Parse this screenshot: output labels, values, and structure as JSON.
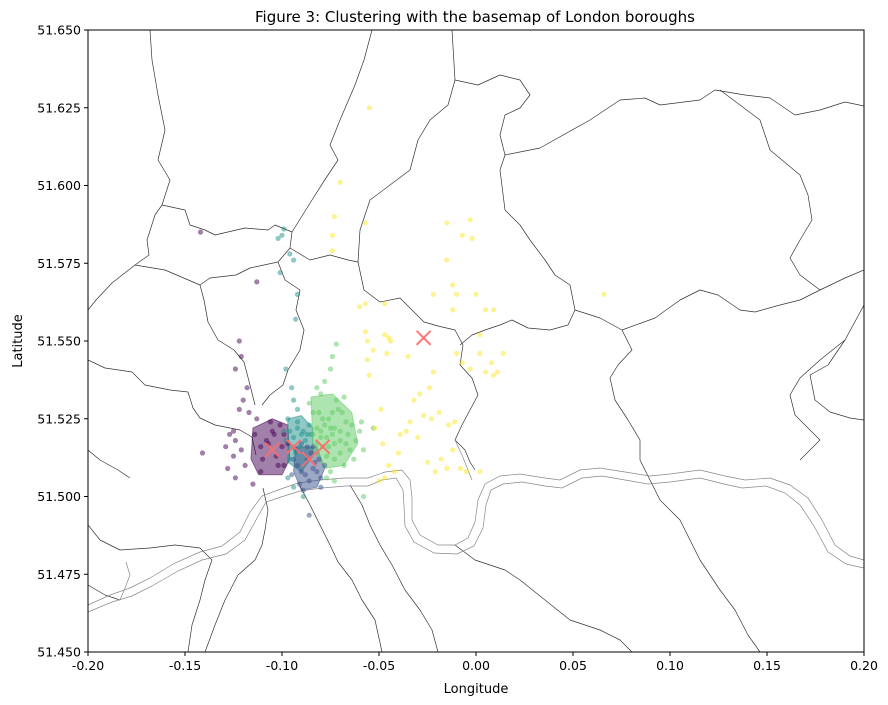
{
  "chart_data": {
    "type": "scatter",
    "title": "Figure 3: Clustering with the basemap of London boroughs",
    "xlabel": "Longitude",
    "ylabel": "Latitude",
    "xlim": [
      -0.2,
      0.2
    ],
    "ylim": [
      51.45,
      51.65
    ],
    "x_ticks": [
      "-0.20",
      "-0.15",
      "-0.10",
      "-0.05",
      "0.00",
      "0.05",
      "0.10",
      "0.15",
      "0.20"
    ],
    "y_ticks": [
      "51.450",
      "51.475",
      "51.500",
      "51.525",
      "51.550",
      "51.575",
      "51.600",
      "51.625",
      "51.650"
    ],
    "grid": false,
    "legend": null,
    "basemap": "London borough boundaries",
    "colors": {
      "cluster_0": "#440154",
      "cluster_1": "#3b528b",
      "cluster_2": "#21918c",
      "cluster_3": "#5ec962",
      "cluster_4": "#fde725",
      "centroid": "#ff6b6b",
      "boundary": "#333333",
      "river": "#888888"
    },
    "series": [
      {
        "cluster": 0,
        "color": "#440154",
        "points": [
          [
            -0.142,
            51.585
          ],
          [
            -0.113,
            51.569
          ],
          [
            -0.122,
            51.55
          ],
          [
            -0.121,
            51.545
          ],
          [
            -0.124,
            51.541
          ],
          [
            -0.118,
            51.535
          ],
          [
            -0.12,
            51.531
          ],
          [
            -0.122,
            51.528
          ],
          [
            -0.117,
            51.527
          ],
          [
            -0.113,
            51.525
          ],
          [
            -0.106,
            51.524
          ],
          [
            -0.125,
            51.521
          ],
          [
            -0.127,
            51.52
          ],
          [
            -0.124,
            51.518
          ],
          [
            -0.129,
            51.516
          ],
          [
            -0.121,
            51.515
          ],
          [
            -0.125,
            51.513
          ],
          [
            -0.141,
            51.514
          ],
          [
            -0.128,
            51.509
          ],
          [
            -0.124,
            51.506
          ],
          [
            -0.119,
            51.51
          ],
          [
            -0.114,
            51.52
          ],
          [
            -0.111,
            51.508
          ],
          [
            -0.11,
            51.512
          ],
          [
            -0.105,
            51.521
          ],
          [
            -0.107,
            51.517
          ],
          [
            -0.101,
            51.523
          ],
          [
            -0.103,
            51.513
          ],
          [
            -0.099,
            51.51
          ],
          [
            -0.102,
            51.51
          ],
          [
            -0.097,
            51.517
          ],
          [
            -0.099,
            51.52
          ],
          [
            -0.115,
            51.504
          ],
          [
            -0.111,
            51.516
          ],
          [
            -0.108,
            51.518
          ],
          [
            -0.104,
            51.52
          ],
          [
            -0.1,
            51.516
          ]
        ]
      },
      {
        "cluster": 1,
        "color": "#3b528b",
        "points": [
          [
            -0.092,
            51.51
          ],
          [
            -0.094,
            51.512
          ],
          [
            -0.09,
            51.508
          ],
          [
            -0.088,
            51.507
          ],
          [
            -0.086,
            51.505
          ],
          [
            -0.084,
            51.509
          ],
          [
            -0.082,
            51.508
          ],
          [
            -0.08,
            51.506
          ],
          [
            -0.083,
            51.511
          ],
          [
            -0.087,
            51.512
          ],
          [
            -0.085,
            51.514
          ],
          [
            -0.081,
            51.512
          ],
          [
            -0.078,
            51.51
          ],
          [
            -0.091,
            51.504
          ],
          [
            -0.089,
            51.502
          ],
          [
            -0.086,
            51.494
          ],
          [
            -0.08,
            51.503
          ],
          [
            -0.093,
            51.515
          ],
          [
            -0.095,
            51.507
          ],
          [
            -0.087,
            51.516
          ],
          [
            -0.084,
            51.516
          ],
          [
            -0.09,
            51.517
          ]
        ]
      },
      {
        "cluster": 2,
        "color": "#21918c",
        "points": [
          [
            -0.1,
            51.584
          ],
          [
            -0.099,
            51.586
          ],
          [
            -0.102,
            51.583
          ],
          [
            -0.096,
            51.578
          ],
          [
            -0.094,
            51.576
          ],
          [
            -0.101,
            51.572
          ],
          [
            -0.092,
            51.565
          ],
          [
            -0.093,
            51.557
          ],
          [
            -0.098,
            51.541
          ],
          [
            -0.095,
            51.535
          ],
          [
            -0.094,
            51.531
          ],
          [
            -0.092,
            51.528
          ],
          [
            -0.097,
            51.525
          ],
          [
            -0.099,
            51.521
          ],
          [
            -0.096,
            51.521
          ],
          [
            -0.098,
            51.518
          ],
          [
            -0.094,
            51.519
          ],
          [
            -0.092,
            51.522
          ],
          [
            -0.09,
            51.52
          ],
          [
            -0.095,
            51.516
          ],
          [
            -0.093,
            51.514
          ],
          [
            -0.096,
            51.512
          ],
          [
            -0.091,
            51.516
          ],
          [
            -0.088,
            51.518
          ],
          [
            -0.089,
            51.521
          ],
          [
            -0.086,
            51.523
          ],
          [
            -0.087,
            51.52
          ],
          [
            -0.092,
            51.524
          ],
          [
            -0.094,
            51.503
          ],
          [
            -0.089,
            51.5
          ],
          [
            -0.097,
            51.506
          ],
          [
            -0.085,
            51.52
          ]
        ]
      },
      {
        "cluster": 3,
        "color": "#5ec962",
        "points": [
          [
            -0.072,
            51.549
          ],
          [
            -0.074,
            51.545
          ],
          [
            -0.075,
            51.541
          ],
          [
            -0.078,
            51.537
          ],
          [
            -0.082,
            51.535
          ],
          [
            -0.08,
            51.533
          ],
          [
            -0.086,
            51.53
          ],
          [
            -0.084,
            51.527
          ],
          [
            -0.081,
            51.527
          ],
          [
            -0.079,
            51.525
          ],
          [
            -0.078,
            51.523
          ],
          [
            -0.075,
            51.522
          ],
          [
            -0.073,
            51.522
          ],
          [
            -0.07,
            51.521
          ],
          [
            -0.074,
            51.52
          ],
          [
            -0.077,
            51.519
          ],
          [
            -0.08,
            51.519
          ],
          [
            -0.082,
            51.517
          ],
          [
            -0.079,
            51.516
          ],
          [
            -0.076,
            51.516
          ],
          [
            -0.073,
            51.517
          ],
          [
            -0.07,
            51.518
          ],
          [
            -0.067,
            51.517
          ],
          [
            -0.066,
            51.52
          ],
          [
            -0.064,
            51.523
          ],
          [
            -0.067,
            51.524
          ],
          [
            -0.069,
            51.527
          ],
          [
            -0.072,
            51.531
          ],
          [
            -0.074,
            51.527
          ],
          [
            -0.077,
            51.513
          ],
          [
            -0.073,
            51.512
          ],
          [
            -0.07,
            51.514
          ],
          [
            -0.065,
            51.515
          ],
          [
            -0.062,
            51.518
          ],
          [
            -0.06,
            51.521
          ],
          [
            -0.059,
            51.524
          ],
          [
            -0.058,
            51.515
          ],
          [
            -0.063,
            51.512
          ],
          [
            -0.068,
            51.51
          ],
          [
            -0.075,
            51.508
          ],
          [
            -0.058,
            51.5
          ],
          [
            -0.053,
            51.522
          ],
          [
            -0.076,
            51.525
          ],
          [
            -0.071,
            51.528
          ],
          [
            -0.068,
            51.532
          ],
          [
            -0.082,
            51.522
          ],
          [
            -0.084,
            51.52
          ],
          [
            -0.08,
            51.521
          ],
          [
            -0.077,
            51.506
          ],
          [
            -0.073,
            51.505
          ]
        ]
      },
      {
        "cluster": 4,
        "color": "#fde725",
        "points": [
          [
            -0.055,
            51.625
          ],
          [
            -0.07,
            51.601
          ],
          [
            -0.073,
            51.59
          ],
          [
            -0.057,
            51.588
          ],
          [
            -0.074,
            51.584
          ],
          [
            -0.074,
            51.579
          ],
          [
            -0.015,
            51.588
          ],
          [
            -0.003,
            51.589
          ],
          [
            -0.007,
            51.584
          ],
          [
            -0.002,
            51.583
          ],
          [
            -0.015,
            51.576
          ],
          [
            -0.022,
            51.565
          ],
          [
            -0.012,
            51.568
          ],
          [
            -0.01,
            51.565
          ],
          [
            0.0,
            51.565
          ],
          [
            0.009,
            51.56
          ],
          [
            0.066,
            51.565
          ],
          [
            -0.06,
            51.561
          ],
          [
            -0.057,
            51.562
          ],
          [
            -0.047,
            51.562
          ],
          [
            -0.057,
            51.553
          ],
          [
            -0.047,
            51.552
          ],
          [
            -0.045,
            51.551
          ],
          [
            -0.044,
            51.55
          ],
          [
            -0.056,
            51.55
          ],
          [
            -0.053,
            51.547
          ],
          [
            -0.046,
            51.546
          ],
          [
            -0.035,
            51.545
          ],
          [
            -0.012,
            51.56
          ],
          [
            0.005,
            51.56
          ],
          [
            0.002,
            51.552
          ],
          [
            -0.01,
            51.546
          ],
          [
            -0.007,
            51.543
          ],
          [
            0.002,
            51.546
          ],
          [
            0.014,
            51.546
          ],
          [
            0.008,
            51.543
          ],
          [
            0.005,
            51.54
          ],
          [
            0.009,
            51.539
          ],
          [
            0.011,
            51.54
          ],
          [
            -0.003,
            51.541
          ],
          [
            -0.056,
            51.544
          ],
          [
            -0.055,
            51.539
          ],
          [
            -0.022,
            51.54
          ],
          [
            -0.024,
            51.535
          ],
          [
            -0.029,
            51.533
          ],
          [
            -0.032,
            51.531
          ],
          [
            -0.027,
            51.526
          ],
          [
            -0.023,
            51.525
          ],
          [
            -0.019,
            51.527
          ],
          [
            -0.014,
            51.523
          ],
          [
            -0.011,
            51.524
          ],
          [
            -0.034,
            51.524
          ],
          [
            -0.036,
            51.521
          ],
          [
            -0.039,
            51.52
          ],
          [
            -0.04,
            51.514
          ],
          [
            -0.048,
            51.517
          ],
          [
            -0.042,
            51.508
          ],
          [
            -0.047,
            51.506
          ],
          [
            -0.025,
            51.511
          ],
          [
            -0.018,
            51.512
          ],
          [
            -0.012,
            51.515
          ],
          [
            -0.008,
            51.509
          ],
          [
            -0.021,
            51.508
          ],
          [
            -0.015,
            51.509
          ],
          [
            -0.052,
            51.522
          ],
          [
            -0.049,
            51.528
          ],
          [
            -0.05,
            51.505
          ],
          [
            -0.045,
            51.51
          ],
          [
            0.002,
            51.508
          ],
          [
            -0.005,
            51.508
          ],
          [
            -0.03,
            51.519
          ]
        ]
      }
    ],
    "dense_clusters": [
      {
        "cluster": 0,
        "polygon": [
          [
            -0.115,
            51.522
          ],
          [
            -0.105,
            51.525
          ],
          [
            -0.097,
            51.523
          ],
          [
            -0.096,
            51.512
          ],
          [
            -0.1,
            51.507
          ],
          [
            -0.112,
            51.507
          ],
          [
            -0.116,
            51.512
          ]
        ]
      },
      {
        "cluster": 2,
        "polygon": [
          [
            -0.097,
            51.525
          ],
          [
            -0.09,
            51.526
          ],
          [
            -0.084,
            51.522
          ],
          [
            -0.084,
            51.513
          ],
          [
            -0.09,
            51.508
          ],
          [
            -0.097,
            51.511
          ]
        ]
      },
      {
        "cluster": 1,
        "polygon": [
          [
            -0.093,
            51.516
          ],
          [
            -0.082,
            51.516
          ],
          [
            -0.078,
            51.509
          ],
          [
            -0.082,
            51.503
          ],
          [
            -0.09,
            51.502
          ],
          [
            -0.094,
            51.508
          ]
        ]
      },
      {
        "cluster": 3,
        "polygon": [
          [
            -0.085,
            51.532
          ],
          [
            -0.074,
            51.533
          ],
          [
            -0.064,
            51.527
          ],
          [
            -0.061,
            51.517
          ],
          [
            -0.068,
            51.51
          ],
          [
            -0.078,
            51.509
          ],
          [
            -0.084,
            51.515
          ]
        ]
      }
    ],
    "centroids": [
      {
        "cluster": 0,
        "x": -0.105,
        "y": 51.515
      },
      {
        "cluster": 2,
        "x": -0.094,
        "y": 51.516
      },
      {
        "cluster": 1,
        "x": -0.086,
        "y": 51.512
      },
      {
        "cluster": 3,
        "x": -0.079,
        "y": 51.516
      },
      {
        "cluster": 4,
        "x": -0.027,
        "y": 51.551
      }
    ]
  }
}
